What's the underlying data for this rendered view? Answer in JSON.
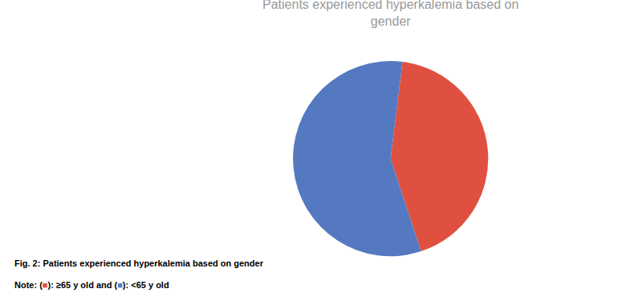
{
  "chart_data": {
    "type": "pie",
    "title": "Patients experienced hyperkalemia based on\ngender",
    "categories": [
      "≥65 y old",
      "<65 y old"
    ],
    "values": [
      43,
      57
    ],
    "colors": [
      "#e05040",
      "#5579c0"
    ],
    "annotations": [
      "Fig. 2: Patients experienced hyperkalemia based on gender",
      "Note: (■): ≥65 y old and (■): <65 y old"
    ]
  }
}
